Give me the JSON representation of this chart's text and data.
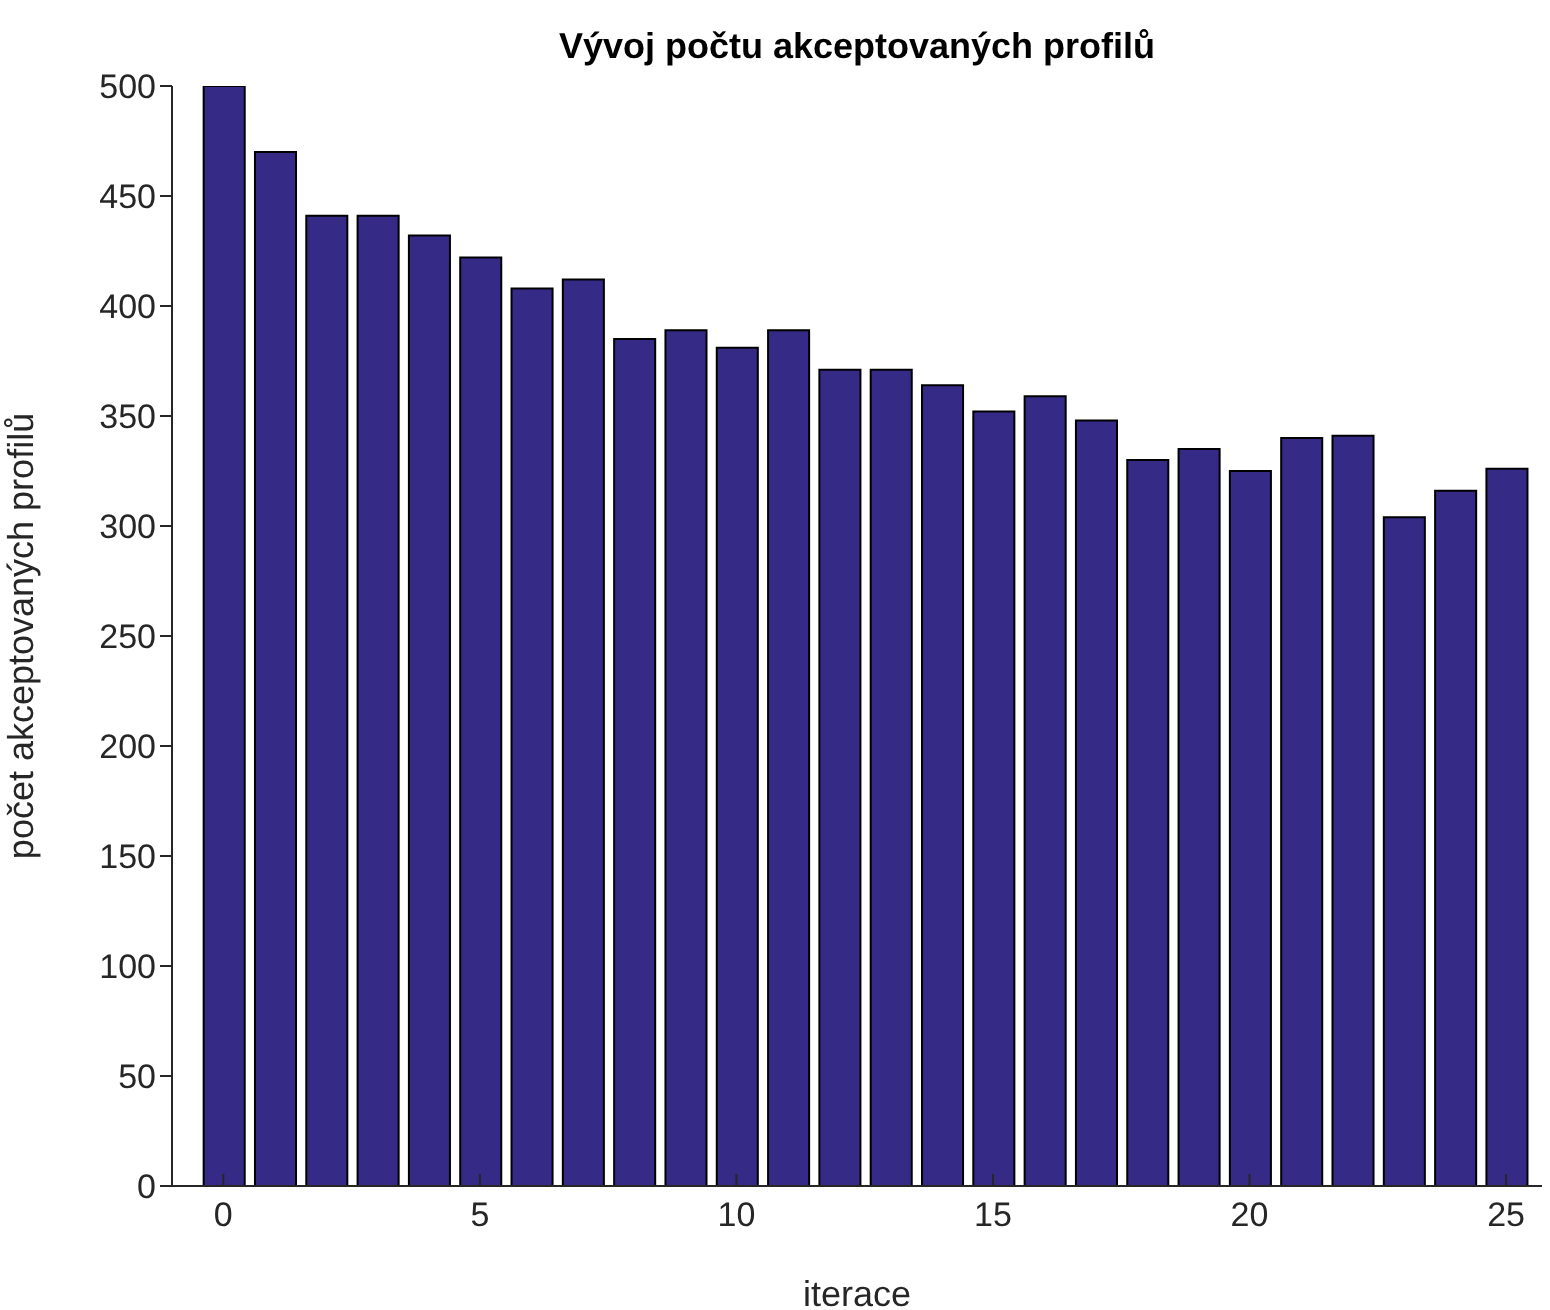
{
  "chart_data": {
    "type": "bar",
    "title": "Vývoj počtu akceptovaných profilů",
    "xlabel": "iterace",
    "ylabel": "počet akceptovaných profilů",
    "x": [
      0,
      1,
      2,
      3,
      4,
      5,
      6,
      7,
      8,
      9,
      10,
      11,
      12,
      13,
      14,
      15,
      16,
      17,
      18,
      19,
      20,
      21,
      22,
      23,
      24,
      25
    ],
    "values": [
      500,
      470,
      441,
      441,
      432,
      422,
      408,
      412,
      385,
      389,
      381,
      389,
      371,
      371,
      364,
      352,
      359,
      348,
      330,
      335,
      325,
      340,
      341,
      304,
      316,
      326
    ],
    "color": "#352a86",
    "xlim": [
      -1,
      25.7
    ],
    "xticks": [
      0,
      5,
      10,
      15,
      20,
      25
    ],
    "ylim": [
      0,
      500
    ],
    "yticks": [
      0,
      50,
      100,
      150,
      200,
      250,
      300,
      350,
      400,
      450,
      500
    ]
  }
}
